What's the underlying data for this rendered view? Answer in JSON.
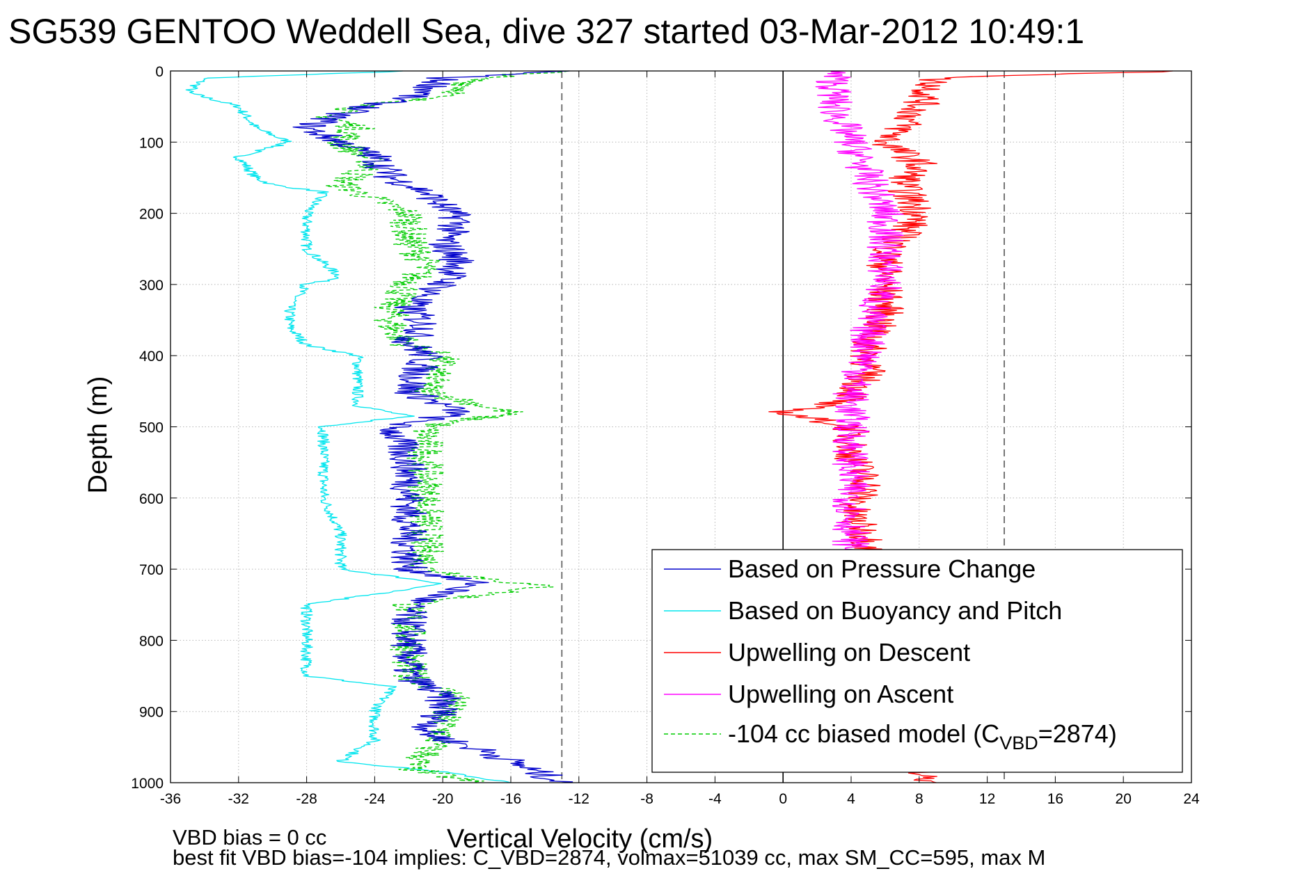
{
  "chart_data": {
    "type": "line",
    "title": "SG539 GENTOO Weddell Sea, dive 327 started 03-Mar-2012 10:49:1",
    "xlabel": "Vertical Velocity (cm/s)",
    "ylabel": "Depth (m)",
    "xlim": [
      -36,
      24
    ],
    "ylim": [
      0,
      1000
    ],
    "y_reversed": true,
    "grid": true,
    "legend_position": "lower-right",
    "x_ticks": [
      "-36",
      "-32",
      "-28",
      "-24",
      "-20",
      "-16",
      "-12",
      "-8",
      "-4",
      "0",
      "4",
      "8",
      "12",
      "16",
      "20",
      "24"
    ],
    "y_ticks": [
      "0",
      "100",
      "200",
      "300",
      "400",
      "500",
      "600",
      "700",
      "800",
      "900",
      "1000"
    ],
    "reference_lines": [
      {
        "x": -13,
        "style": "dashed",
        "color": "#555555"
      },
      {
        "x": 13,
        "style": "dashed",
        "color": "#555555"
      },
      {
        "x": 0,
        "style": "solid",
        "color": "#000000"
      }
    ],
    "series": [
      {
        "name": "Based on Pressure Change",
        "color": "#0000cc",
        "style": "solid",
        "depth": [
          0,
          10,
          30,
          60,
          80,
          100,
          120,
          150,
          170,
          190,
          210,
          240,
          270,
          300,
          330,
          360,
          380,
          400,
          450,
          480,
          500,
          550,
          600,
          650,
          700,
          720,
          750,
          800,
          850,
          880,
          900,
          930,
          960,
          980,
          1000
        ],
        "values": [
          -13,
          -20,
          -21,
          -26,
          -28,
          -26,
          -24,
          -23,
          -21,
          -20,
          -19,
          -20,
          -19,
          -20,
          -22,
          -21,
          -22,
          -21,
          -22,
          -19,
          -23,
          -22,
          -22,
          -22,
          -22,
          -18,
          -22,
          -22,
          -22,
          -20,
          -20,
          -21,
          -17,
          -15,
          -13
        ]
      },
      {
        "name": "Based on Buoyancy and Pitch",
        "color": "#00e5ee",
        "style": "solid",
        "depth": [
          0,
          10,
          30,
          50,
          80,
          100,
          120,
          150,
          160,
          170,
          200,
          250,
          290,
          300,
          330,
          360,
          385,
          400,
          430,
          470,
          485,
          500,
          550,
          600,
          650,
          700,
          720,
          750,
          800,
          850,
          865,
          900,
          940,
          970,
          985,
          1000
        ],
        "values": [
          -22,
          -34,
          -35,
          -32,
          -31,
          -29,
          -32,
          -31,
          -30,
          -27,
          -28,
          -28,
          -26,
          -28,
          -29,
          -29,
          -28,
          -25,
          -25,
          -25,
          -22,
          -27,
          -27,
          -27,
          -26,
          -26,
          -20,
          -28,
          -28,
          -28,
          -23,
          -24,
          -24,
          -26,
          -20,
          -16
        ]
      },
      {
        "name": "Upwelling on Descent",
        "color": "#ff0000",
        "style": "solid",
        "depth": [
          0,
          10,
          50,
          80,
          100,
          130,
          160,
          200,
          230,
          260,
          300,
          340,
          380,
          420,
          460,
          480,
          500,
          540,
          580,
          620,
          660,
          680,
          700,
          800,
          900,
          960,
          990,
          1000
        ],
        "values": [
          23,
          9,
          8,
          7,
          6,
          8,
          7,
          8,
          7,
          6,
          6,
          6,
          5,
          5,
          4,
          0,
          4,
          4,
          5,
          4,
          5,
          5,
          5,
          5,
          5,
          6,
          8,
          9
        ]
      },
      {
        "name": "Upwelling on Ascent",
        "color": "#ff00ff",
        "style": "solid",
        "depth": [
          0,
          10,
          50,
          100,
          150,
          200,
          250,
          300,
          350,
          400,
          450,
          500,
          550,
          600,
          650,
          680
        ],
        "values": [
          3,
          3,
          3,
          4,
          5,
          6,
          6,
          6,
          5,
          5,
          4,
          4,
          4,
          4,
          4,
          4
        ]
      },
      {
        "name": "-104 cc biased model (C_VBD=2874)",
        "color": "#00cc00",
        "style": "dashed",
        "depth": [
          0,
          10,
          30,
          60,
          80,
          100,
          130,
          160,
          200,
          240,
          270,
          300,
          330,
          360,
          385,
          400,
          450,
          480,
          500,
          550,
          600,
          650,
          700,
          725,
          750,
          800,
          850,
          880,
          900,
          930,
          960,
          980,
          1000
        ],
        "values": [
          -13,
          -18,
          -19,
          -27,
          -25,
          -26,
          -24,
          -26,
          -22,
          -22,
          -21,
          -22,
          -23,
          -23,
          -22,
          -20,
          -21,
          -16,
          -21,
          -21,
          -21,
          -21,
          -21,
          -14,
          -22,
          -22,
          -22,
          -19,
          -20,
          -20,
          -21,
          -22,
          -18
        ]
      }
    ],
    "legend_label_parts": [
      {
        "text": "Based on Pressure Change"
      },
      {
        "text": "Based on Buoyancy and Pitch"
      },
      {
        "text": "Upwelling on Descent"
      },
      {
        "text": "Upwelling on Ascent"
      },
      {
        "text": "-104 cc biased model (C",
        "sub": "VBD",
        "tail": "=2874)"
      }
    ],
    "annotations": [
      "VBD bias = 0 cc",
      "best fit VBD bias=-104 implies: C_VBD=2874, volmax=51039 cc, max SM_CC=595, max M"
    ]
  }
}
